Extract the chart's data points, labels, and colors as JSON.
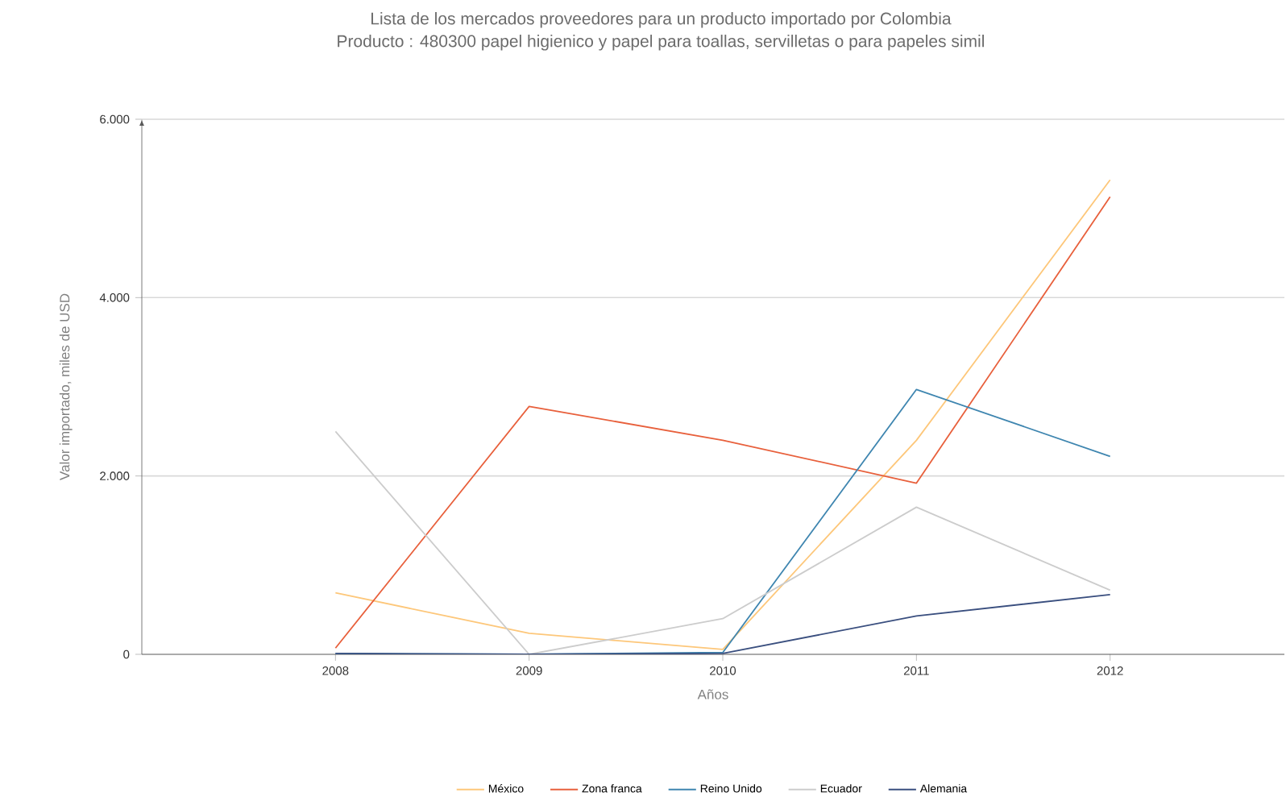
{
  "chart_data": {
    "type": "line",
    "title": "Lista de los mercados proveedores para un producto importado por Colombia",
    "subtitle": "Producto : 480300 papel higienico y papel para toallas, servilletas o para papeles simil",
    "xlabel": "Años",
    "ylabel": "Valor importado, miles de USD",
    "x": [
      2008,
      2009,
      2010,
      2011,
      2012
    ],
    "series": [
      {
        "name": "México",
        "color": "#fdc77a",
        "values": [
          690,
          235,
          55,
          2400,
          5320
        ]
      },
      {
        "name": "Zona franca",
        "color": "#e8603c",
        "values": [
          70,
          2780,
          2400,
          1920,
          5130
        ]
      },
      {
        "name": "Reino Unido",
        "color": "#3f86b0",
        "values": [
          10,
          0,
          20,
          2970,
          2220
        ]
      },
      {
        "name": "Ecuador",
        "color": "#cccccc",
        "values": [
          2500,
          0,
          400,
          1650,
          720
        ]
      },
      {
        "name": "Alemania",
        "color": "#3a4f7f",
        "values": [
          10,
          0,
          10,
          430,
          670
        ]
      }
    ],
    "xlim": [
      2007,
      2012.9
    ],
    "ylim": [
      0,
      6000
    ],
    "xticks": [
      2008,
      2009,
      2010,
      2011,
      2012
    ],
    "yticks": [
      0,
      {
        "value": 2000,
        "label": "2.000"
      },
      {
        "value": 4000,
        "label": "4.000"
      },
      {
        "value": 6000,
        "label": "6.000"
      }
    ],
    "grid": "y",
    "legend": "bottom",
    "marker": "none",
    "line_style": "solid"
  }
}
